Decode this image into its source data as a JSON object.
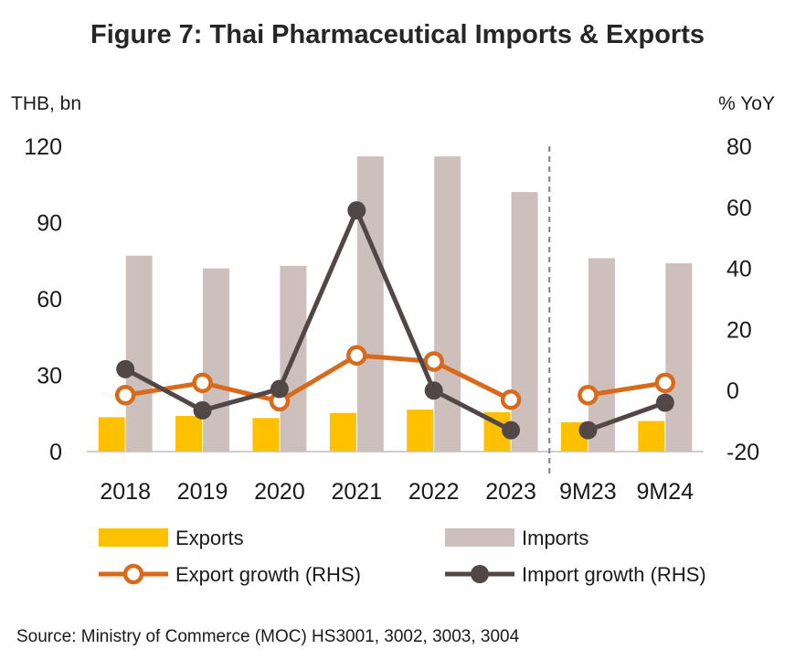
{
  "title": "Figure 7: Thai Pharmaceutical Imports & Exports",
  "source": "Source: Ministry of Commerce (MOC) HS3001, 3002, 3003, 3004",
  "chart_data": {
    "type": "bar",
    "categories": [
      "2018",
      "2019",
      "2020",
      "2021",
      "2022",
      "2023",
      "9M23",
      "9M24"
    ],
    "ylabel_left": "THB, bn",
    "ylabel_right": "% YoY",
    "ylim_left": [
      0,
      120
    ],
    "yticks_left": [
      0,
      30,
      60,
      90,
      120
    ],
    "ylim_right": [
      -20,
      80
    ],
    "yticks_right": [
      -20,
      0,
      20,
      40,
      60,
      80
    ],
    "divider_after_index": 5,
    "series": [
      {
        "name": "Exports",
        "kind": "bar",
        "axis": "left",
        "color": "#FFC000",
        "values": [
          13.5,
          14,
          13.2,
          15.2,
          16.5,
          15.5,
          11.5,
          12
        ]
      },
      {
        "name": "Imports",
        "kind": "bar",
        "axis": "left",
        "color": "#CDBFBC",
        "values": [
          77,
          72,
          73,
          116,
          116,
          102,
          76,
          74
        ]
      },
      {
        "name": "Export growth (RHS)",
        "kind": "line",
        "axis": "right",
        "color": "#D86A1C",
        "marker": "hollow-circle",
        "values": [
          -1.5,
          2.5,
          -3.5,
          11.5,
          9.5,
          -3,
          -1.5,
          2.5
        ]
      },
      {
        "name": "Import growth (RHS)",
        "kind": "line",
        "axis": "right",
        "color": "#524747",
        "marker": "filled-circle",
        "values": [
          7,
          -6.5,
          0.5,
          59,
          0,
          -13,
          -13,
          -4
        ]
      }
    ],
    "legend": {
      "position": "bottom",
      "items": [
        "Exports",
        "Imports",
        "Export growth (RHS)",
        "Import growth (RHS)"
      ]
    }
  }
}
